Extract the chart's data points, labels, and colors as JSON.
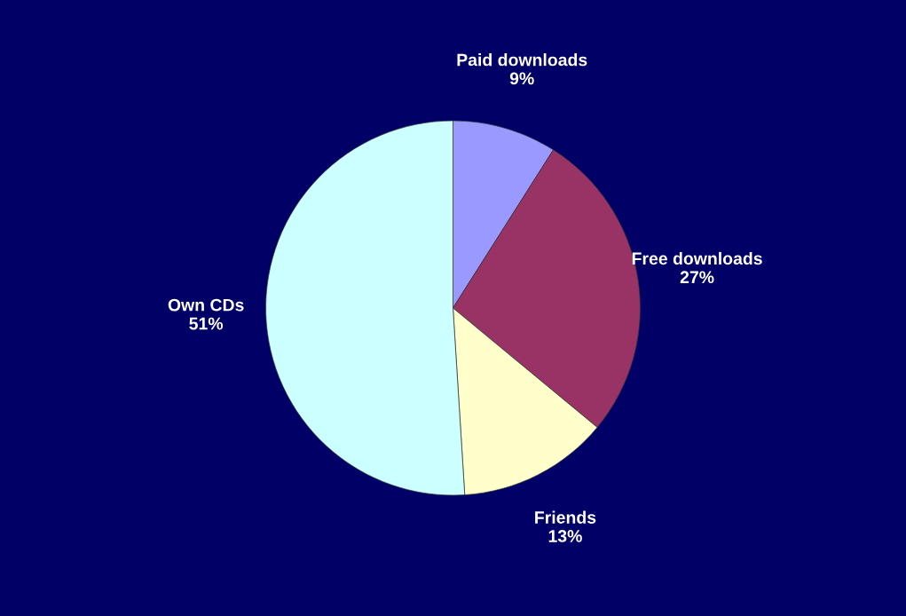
{
  "chart_data": {
    "type": "pie",
    "categories": [
      "Paid downloads",
      "Free downloads",
      "Friends",
      "Own CDs"
    ],
    "values": [
      9,
      27,
      13,
      51
    ],
    "value_labels": [
      "9%",
      "27%",
      "13%",
      "51%"
    ],
    "colors": [
      "#9999ff",
      "#993366",
      "#ffffcc",
      "#ccffff"
    ],
    "legend": false
  }
}
